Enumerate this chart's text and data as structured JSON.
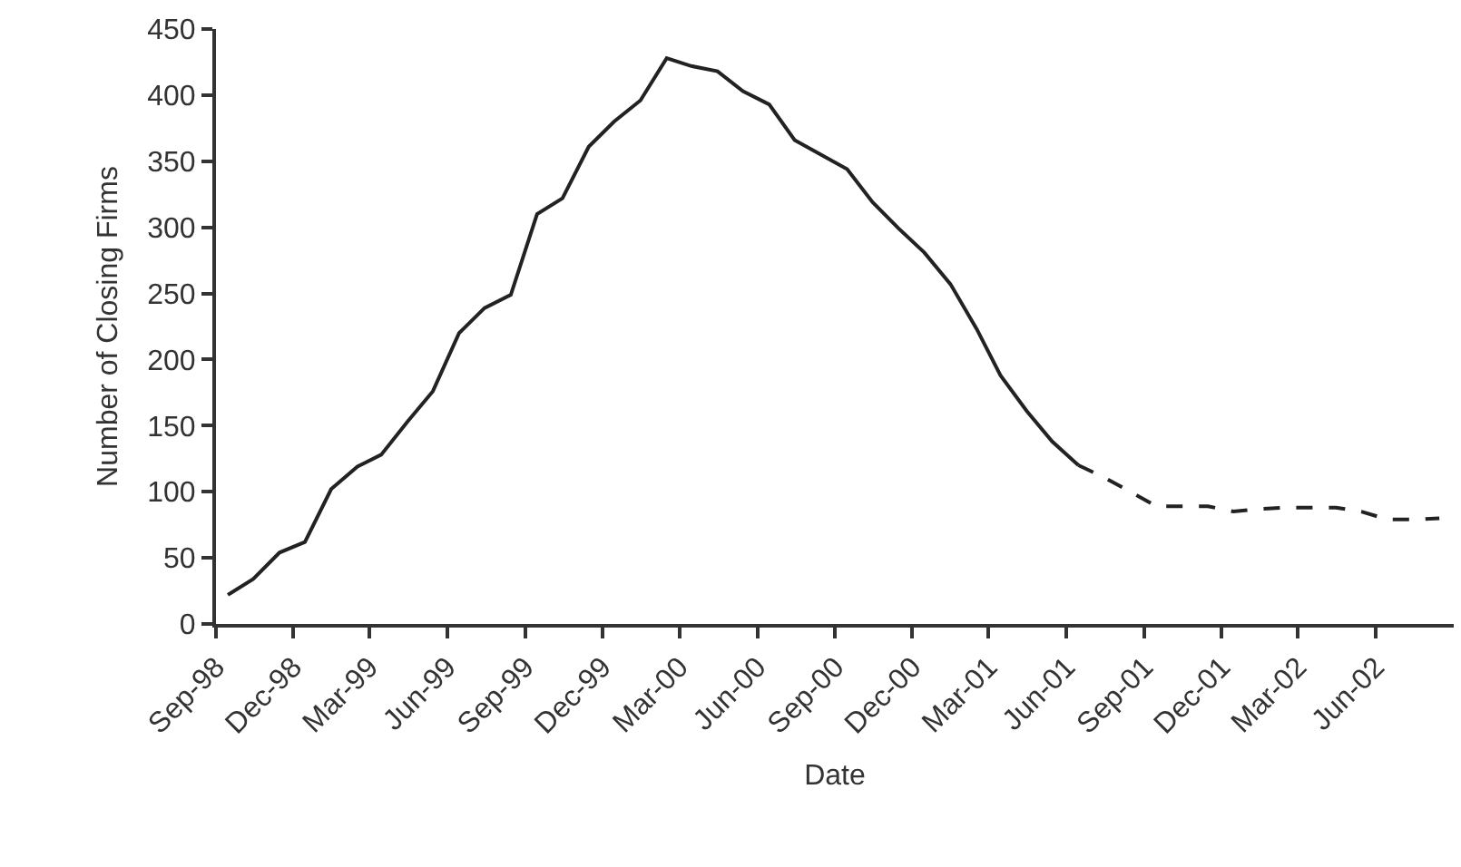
{
  "chart_data": {
    "type": "line",
    "xlabel": "Date",
    "ylabel": "Number of Closing Firms",
    "x": [
      "1998-09-15",
      "1998-10-15",
      "1998-11-15",
      "1998-12-15",
      "1999-01-15",
      "1999-02-15",
      "1999-03-15",
      "1999-04-15",
      "1999-05-15",
      "1999-06-15",
      "1999-07-15",
      "1999-08-15",
      "1999-09-15",
      "1999-10-15",
      "1999-11-15",
      "1999-12-15",
      "2000-01-15",
      "2000-02-15",
      "2000-03-15",
      "2000-04-15",
      "2000-05-15",
      "2000-06-15",
      "2000-07-15",
      "2000-08-15",
      "2000-09-15",
      "2000-10-15",
      "2000-11-15",
      "2000-12-15",
      "2001-01-15",
      "2001-02-15",
      "2001-03-15",
      "2001-04-15",
      "2001-05-15",
      "2001-06-15",
      "2001-07-15",
      "2001-08-15",
      "2001-09-15",
      "2001-10-15",
      "2001-11-15",
      "2001-12-15",
      "2002-01-15",
      "2002-02-15",
      "2002-03-15",
      "2002-04-15",
      "2002-05-15",
      "2002-06-15",
      "2002-07-15",
      "2002-08-15"
    ],
    "series": [
      {
        "color": "#222222",
        "line_style": "solid",
        "values": [
          22,
          34,
          54,
          62,
          102,
          119,
          128,
          153,
          176,
          220,
          239,
          249,
          310,
          322,
          361,
          380,
          396,
          428,
          422,
          418,
          403,
          393,
          366,
          355,
          344,
          319,
          299,
          281,
          257,
          223,
          188,
          161,
          138,
          120,
          null,
          null,
          null,
          null,
          null,
          null,
          null,
          null,
          null,
          null,
          null,
          null,
          null,
          null
        ]
      },
      {
        "color": "#222222",
        "line_style": "dashed",
        "values": [
          null,
          null,
          null,
          null,
          null,
          null,
          null,
          null,
          null,
          null,
          null,
          null,
          null,
          null,
          null,
          null,
          null,
          null,
          null,
          null,
          null,
          null,
          null,
          null,
          null,
          null,
          null,
          null,
          null,
          null,
          null,
          null,
          null,
          120,
          111,
          100,
          89,
          89,
          89,
          85,
          87,
          88,
          88,
          88,
          85,
          79,
          79,
          80
        ]
      }
    ],
    "xlim": [
      "1998-09-01",
      "2002-09-01"
    ],
    "xticks": [
      {
        "value": "1998-09-01",
        "label": "Sep-98"
      },
      {
        "value": "1998-12-01",
        "label": "Dec-98"
      },
      {
        "value": "1999-03-01",
        "label": "Mar-99"
      },
      {
        "value": "1999-06-01",
        "label": "Jun-99"
      },
      {
        "value": "1999-09-01",
        "label": "Sep-99"
      },
      {
        "value": "1999-12-01",
        "label": "Dec-99"
      },
      {
        "value": "2000-03-01",
        "label": "Mar-00"
      },
      {
        "value": "2000-06-01",
        "label": "Jun-00"
      },
      {
        "value": "2000-09-01",
        "label": "Sep-00"
      },
      {
        "value": "2000-12-01",
        "label": "Dec-00"
      },
      {
        "value": "2001-03-01",
        "label": "Mar-01"
      },
      {
        "value": "2001-06-01",
        "label": "Jun-01"
      },
      {
        "value": "2001-09-01",
        "label": "Sep-01"
      },
      {
        "value": "2001-12-01",
        "label": "Dec-01"
      },
      {
        "value": "2002-03-01",
        "label": "Mar-02"
      },
      {
        "value": "2002-06-01",
        "label": "Jun-02"
      }
    ],
    "ylim": [
      0,
      450
    ],
    "yticks": [
      0,
      50,
      100,
      150,
      200,
      250,
      300,
      350,
      400,
      450
    ],
    "grid": false
  }
}
